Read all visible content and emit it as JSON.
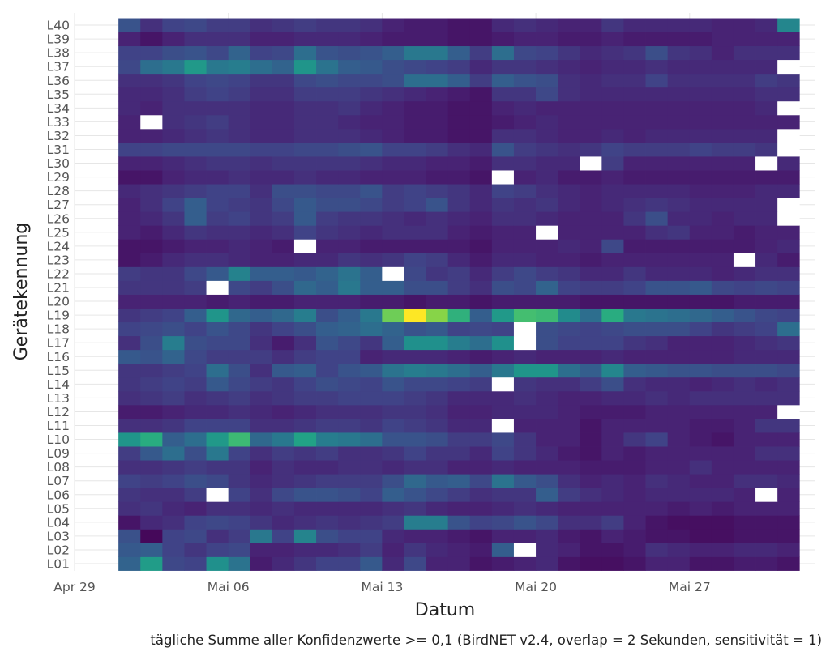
{
  "chart_data": {
    "type": "heatmap",
    "xlabel": "Datum",
    "ylabel": "Gerätekennung",
    "caption": "tägliche Summe aller Konfidenzwerte >= 0,1 (BirdNET v2.4, overlap = 2 Sekunden, sensitivität = 1)",
    "x_ticks": [
      "Apr 29",
      "Mai 06",
      "Mai 13",
      "Mai 20",
      "Mai 27"
    ],
    "x_range": [
      "2023-04-29",
      "2023-06-01"
    ],
    "dates": [
      "2023-05-01",
      "2023-05-02",
      "2023-05-03",
      "2023-05-04",
      "2023-05-05",
      "2023-05-06",
      "2023-05-07",
      "2023-05-08",
      "2023-05-09",
      "2023-05-10",
      "2023-05-11",
      "2023-05-12",
      "2023-05-13",
      "2023-05-14",
      "2023-05-15",
      "2023-05-16",
      "2023-05-17",
      "2023-05-18",
      "2023-05-19",
      "2023-05-20",
      "2023-05-21",
      "2023-05-22",
      "2023-05-23",
      "2023-05-24",
      "2023-05-25",
      "2023-05-26",
      "2023-05-27",
      "2023-05-28",
      "2023-05-29",
      "2023-05-30",
      "2023-05-31"
    ],
    "devices": [
      "L01",
      "L02",
      "L03",
      "L04",
      "L05",
      "L06",
      "L07",
      "L08",
      "L09",
      "L10",
      "L11",
      "L12",
      "L13",
      "L14",
      "L15",
      "L16",
      "L17",
      "L18",
      "L19",
      "L20",
      "L21",
      "L22",
      "L23",
      "L24",
      "L25",
      "L26",
      "L27",
      "L28",
      "L29",
      "L30",
      "L31",
      "L32",
      "L33",
      "L34",
      "L35",
      "L36",
      "L37",
      "L38",
      "L39",
      "L40"
    ],
    "colorscale": "viridis",
    "missing_color": "#ffffff",
    "value_range": [
      0,
      1
    ],
    "note": "values are relative (0 = lowest, 1 = highest); null = no data",
    "values": {
      "L01": [
        0.32,
        0.55,
        0.22,
        0.2,
        0.5,
        0.38,
        0.08,
        0.12,
        0.16,
        0.2,
        0.2,
        0.28,
        0.12,
        0.22,
        0.1,
        0.1,
        0.06,
        0.08,
        0.1,
        0.12,
        0.06,
        0.04,
        0.04,
        0.06,
        0.1,
        0.1,
        0.06,
        0.06,
        0.08,
        0.08,
        0.06
      ],
      "L02": [
        0.28,
        0.3,
        0.2,
        0.16,
        0.2,
        0.22,
        0.1,
        0.1,
        0.12,
        0.12,
        0.14,
        0.18,
        0.1,
        0.16,
        0.12,
        0.1,
        0.08,
        0.3,
        null,
        0.12,
        0.1,
        0.06,
        0.06,
        0.08,
        0.14,
        0.12,
        0.1,
        0.1,
        0.12,
        0.12,
        0.1
      ],
      "L03": [
        0.25,
        0.02,
        0.2,
        0.22,
        0.14,
        0.18,
        0.4,
        0.2,
        0.45,
        0.24,
        0.2,
        0.2,
        0.12,
        0.1,
        0.1,
        0.08,
        0.06,
        0.1,
        0.1,
        0.12,
        0.08,
        0.06,
        0.1,
        0.08,
        0.06,
        0.06,
        0.04,
        0.04,
        0.06,
        0.06,
        0.06
      ],
      "L04": [
        0.06,
        0.12,
        0.14,
        0.2,
        0.22,
        0.2,
        0.16,
        0.12,
        0.14,
        0.16,
        0.14,
        0.16,
        0.18,
        0.42,
        0.42,
        0.26,
        0.2,
        0.22,
        0.26,
        0.22,
        0.14,
        0.14,
        0.18,
        0.1,
        0.06,
        0.04,
        0.04,
        0.04,
        0.06,
        0.06,
        0.06
      ],
      "L05": [
        0.14,
        0.16,
        0.12,
        0.1,
        0.14,
        0.14,
        0.12,
        0.14,
        0.12,
        0.12,
        0.12,
        0.12,
        0.14,
        0.16,
        0.12,
        0.1,
        0.1,
        0.12,
        0.14,
        0.12,
        0.1,
        0.1,
        0.1,
        0.1,
        0.1,
        0.08,
        0.1,
        0.08,
        0.1,
        0.1,
        0.1
      ],
      "L06": [
        0.16,
        0.14,
        0.14,
        0.18,
        null,
        0.2,
        0.14,
        0.22,
        0.26,
        0.26,
        0.24,
        0.2,
        0.3,
        0.26,
        0.22,
        0.18,
        0.14,
        0.16,
        0.16,
        0.3,
        0.18,
        0.14,
        0.12,
        0.1,
        0.12,
        0.12,
        0.12,
        0.12,
        0.1,
        null,
        0.1
      ],
      "L07": [
        0.2,
        0.18,
        0.2,
        0.24,
        0.22,
        0.16,
        0.12,
        0.14,
        0.16,
        0.18,
        0.18,
        0.18,
        0.24,
        0.34,
        0.28,
        0.3,
        0.22,
        0.38,
        0.28,
        0.24,
        0.14,
        0.1,
        0.12,
        0.1,
        0.14,
        0.12,
        0.1,
        0.1,
        0.14,
        0.14,
        0.12
      ],
      "L08": [
        0.14,
        0.14,
        0.16,
        0.18,
        0.16,
        0.16,
        0.1,
        0.14,
        0.12,
        0.12,
        0.14,
        0.14,
        0.12,
        0.14,
        0.14,
        0.1,
        0.1,
        0.12,
        0.1,
        0.1,
        0.1,
        0.08,
        0.08,
        0.08,
        0.1,
        0.1,
        0.14,
        0.1,
        0.1,
        0.1,
        0.1
      ],
      "L09": [
        0.18,
        0.28,
        0.36,
        0.24,
        0.4,
        0.2,
        0.14,
        0.18,
        0.16,
        0.18,
        0.14,
        0.14,
        0.16,
        0.2,
        0.16,
        0.16,
        0.12,
        0.2,
        0.16,
        0.12,
        0.08,
        0.06,
        0.1,
        0.08,
        0.1,
        0.1,
        0.1,
        0.1,
        0.1,
        0.14,
        0.14
      ],
      "L10": [
        0.52,
        0.62,
        0.3,
        0.36,
        0.54,
        0.68,
        0.34,
        0.4,
        0.58,
        0.42,
        0.4,
        0.36,
        0.26,
        0.26,
        0.24,
        0.18,
        0.18,
        0.22,
        0.16,
        0.1,
        0.1,
        0.06,
        0.1,
        0.16,
        0.2,
        0.1,
        0.08,
        0.06,
        0.1,
        0.1,
        0.1
      ],
      "L11": [
        0.14,
        0.14,
        0.16,
        0.2,
        0.2,
        0.2,
        0.14,
        0.14,
        0.16,
        0.18,
        0.18,
        0.16,
        0.2,
        0.18,
        0.16,
        0.12,
        0.12,
        null,
        0.1,
        0.1,
        0.1,
        0.06,
        0.1,
        0.1,
        0.1,
        0.1,
        0.08,
        0.08,
        0.1,
        0.16,
        0.16
      ],
      "L12": [
        0.08,
        0.08,
        0.1,
        0.12,
        0.12,
        0.14,
        0.12,
        0.1,
        0.12,
        0.14,
        0.14,
        0.14,
        0.16,
        0.16,
        0.14,
        0.1,
        0.1,
        0.12,
        0.12,
        0.12,
        0.1,
        0.08,
        0.08,
        0.08,
        0.1,
        0.1,
        0.1,
        0.1,
        0.1,
        0.1,
        null
      ],
      "L13": [
        0.14,
        0.16,
        0.18,
        0.14,
        0.16,
        0.18,
        0.14,
        0.16,
        0.18,
        0.18,
        0.2,
        0.2,
        0.2,
        0.18,
        0.16,
        0.12,
        0.12,
        0.12,
        0.14,
        0.12,
        0.1,
        0.1,
        0.12,
        0.12,
        0.14,
        0.12,
        0.14,
        0.14,
        0.14,
        0.14,
        0.14
      ],
      "L14": [
        0.16,
        0.18,
        0.2,
        0.18,
        0.28,
        0.22,
        0.18,
        0.16,
        0.2,
        0.24,
        0.22,
        0.2,
        0.26,
        0.22,
        0.22,
        0.2,
        0.18,
        null,
        0.16,
        0.14,
        0.14,
        0.18,
        0.24,
        0.14,
        0.12,
        0.12,
        0.1,
        0.12,
        0.14,
        0.12,
        0.14
      ],
      "L15": [
        0.16,
        0.16,
        0.18,
        0.2,
        0.36,
        0.24,
        0.14,
        0.28,
        0.3,
        0.2,
        0.26,
        0.28,
        0.38,
        0.42,
        0.4,
        0.36,
        0.3,
        0.4,
        0.52,
        0.52,
        0.36,
        0.3,
        0.46,
        0.3,
        0.28,
        0.26,
        0.26,
        0.24,
        0.24,
        0.24,
        0.22
      ],
      "L16": [
        0.28,
        0.26,
        0.32,
        0.22,
        0.18,
        0.18,
        0.18,
        0.14,
        0.18,
        0.2,
        0.2,
        0.1,
        0.12,
        0.12,
        0.12,
        0.1,
        0.08,
        0.1,
        0.12,
        0.1,
        0.1,
        0.1,
        0.12,
        0.1,
        0.1,
        0.1,
        0.1,
        0.1,
        0.12,
        0.12,
        0.12
      ],
      "L17": [
        0.14,
        0.24,
        0.42,
        0.24,
        0.22,
        0.22,
        0.14,
        0.08,
        0.14,
        0.26,
        0.22,
        0.16,
        0.3,
        0.5,
        0.5,
        0.42,
        0.36,
        0.5,
        null,
        0.24,
        0.2,
        0.2,
        0.2,
        0.16,
        0.14,
        0.1,
        0.1,
        0.1,
        0.12,
        0.14,
        0.16
      ],
      "L18": [
        0.2,
        0.22,
        0.24,
        0.2,
        0.26,
        0.22,
        0.16,
        0.2,
        0.24,
        0.3,
        0.32,
        0.36,
        0.32,
        0.26,
        0.28,
        0.2,
        0.22,
        0.2,
        null,
        0.24,
        0.22,
        0.2,
        0.22,
        0.24,
        0.24,
        0.24,
        0.2,
        0.16,
        0.18,
        0.2,
        0.36
      ],
      "L19": [
        0.16,
        0.18,
        0.2,
        0.3,
        0.52,
        0.34,
        0.3,
        0.34,
        0.42,
        0.24,
        0.3,
        0.4,
        0.78,
        1.0,
        0.82,
        0.64,
        0.3,
        0.54,
        0.7,
        0.68,
        0.48,
        0.36,
        0.62,
        0.4,
        0.38,
        0.36,
        0.34,
        0.3,
        0.26,
        0.22,
        0.2
      ],
      "L20": [
        0.1,
        0.1,
        0.1,
        0.1,
        0.08,
        0.1,
        0.08,
        0.08,
        0.1,
        0.1,
        0.1,
        0.08,
        0.08,
        0.06,
        0.08,
        0.08,
        0.06,
        0.08,
        0.08,
        0.08,
        0.08,
        0.06,
        0.06,
        0.06,
        0.06,
        0.06,
        0.06,
        0.06,
        0.08,
        0.08,
        0.08
      ],
      "L21": [
        0.16,
        0.16,
        0.16,
        0.18,
        null,
        0.22,
        0.18,
        0.24,
        0.34,
        0.3,
        0.4,
        0.3,
        0.3,
        0.24,
        0.24,
        0.18,
        0.14,
        0.24,
        0.22,
        0.32,
        0.2,
        0.18,
        0.18,
        0.2,
        0.26,
        0.26,
        0.28,
        0.22,
        0.2,
        0.22,
        0.2
      ],
      "L22": [
        0.18,
        0.16,
        0.16,
        0.22,
        0.28,
        0.44,
        0.3,
        0.3,
        0.28,
        0.32,
        0.38,
        0.3,
        null,
        0.22,
        0.16,
        0.18,
        0.12,
        0.18,
        0.22,
        0.18,
        0.16,
        0.12,
        0.12,
        0.16,
        0.12,
        0.12,
        0.12,
        0.1,
        0.12,
        0.14,
        0.14
      ],
      "L23": [
        0.06,
        0.08,
        0.12,
        0.14,
        0.14,
        0.12,
        0.1,
        0.1,
        0.12,
        0.12,
        0.16,
        0.14,
        0.16,
        0.2,
        0.18,
        0.12,
        0.08,
        0.12,
        0.12,
        0.1,
        0.1,
        0.08,
        0.1,
        0.1,
        0.1,
        0.1,
        0.1,
        0.1,
        null,
        0.12,
        0.08
      ],
      "L24": [
        0.06,
        0.06,
        0.08,
        0.1,
        0.1,
        0.12,
        0.1,
        0.08,
        null,
        0.1,
        0.1,
        0.08,
        0.08,
        0.08,
        0.08,
        0.08,
        0.06,
        0.1,
        0.1,
        0.1,
        0.12,
        0.1,
        0.22,
        0.08,
        0.08,
        0.08,
        0.08,
        0.08,
        0.08,
        0.1,
        0.12
      ],
      "L25": [
        0.1,
        0.08,
        0.12,
        0.16,
        0.14,
        0.14,
        0.12,
        0.14,
        0.2,
        0.16,
        0.14,
        0.12,
        0.14,
        0.14,
        0.14,
        0.1,
        0.08,
        0.1,
        0.1,
        null,
        0.1,
        0.1,
        0.1,
        0.1,
        0.14,
        0.16,
        0.1,
        0.1,
        0.08,
        0.1,
        0.1
      ],
      "L26": [
        0.1,
        0.12,
        0.16,
        0.3,
        0.18,
        0.2,
        0.16,
        0.18,
        0.28,
        0.18,
        0.16,
        0.16,
        0.14,
        0.12,
        0.14,
        0.12,
        0.1,
        0.14,
        0.14,
        0.12,
        0.1,
        0.1,
        0.1,
        0.16,
        0.24,
        0.12,
        0.12,
        0.1,
        0.12,
        0.12,
        null
      ],
      "L27": [
        0.1,
        0.14,
        0.2,
        0.3,
        0.2,
        0.18,
        0.16,
        0.22,
        0.28,
        0.24,
        0.24,
        0.22,
        0.18,
        0.2,
        0.26,
        0.16,
        0.12,
        0.16,
        0.14,
        0.16,
        0.12,
        0.1,
        0.12,
        0.14,
        0.16,
        0.14,
        0.12,
        0.12,
        0.12,
        0.12,
        null
      ],
      "L28": [
        0.12,
        0.14,
        0.16,
        0.18,
        0.2,
        0.2,
        0.14,
        0.24,
        0.24,
        0.22,
        0.22,
        0.26,
        0.18,
        0.2,
        0.18,
        0.16,
        0.12,
        0.2,
        0.18,
        0.14,
        0.12,
        0.1,
        0.12,
        0.12,
        0.12,
        0.12,
        0.1,
        0.1,
        0.1,
        0.12,
        0.12
      ],
      "L29": [
        0.06,
        0.06,
        0.1,
        0.12,
        0.12,
        0.14,
        0.12,
        0.12,
        0.14,
        0.12,
        0.12,
        0.1,
        0.1,
        0.1,
        0.08,
        0.08,
        0.06,
        null,
        0.1,
        0.12,
        0.08,
        0.08,
        0.1,
        0.08,
        0.08,
        0.08,
        0.08,
        0.08,
        0.08,
        0.08,
        0.08
      ],
      "L30": [
        0.1,
        0.1,
        0.12,
        0.14,
        0.16,
        0.16,
        0.14,
        0.16,
        0.16,
        0.16,
        0.16,
        0.14,
        0.12,
        0.12,
        0.1,
        0.1,
        0.08,
        0.14,
        0.14,
        0.12,
        0.12,
        null,
        0.18,
        0.1,
        0.1,
        0.1,
        0.1,
        0.1,
        0.1,
        null,
        0.12
      ],
      "L31": [
        0.2,
        0.2,
        0.22,
        0.22,
        0.22,
        0.22,
        0.2,
        0.2,
        0.22,
        0.22,
        0.24,
        0.26,
        0.2,
        0.2,
        0.18,
        0.14,
        0.12,
        0.26,
        0.18,
        0.16,
        0.14,
        0.16,
        0.2,
        0.18,
        0.18,
        0.18,
        0.2,
        0.18,
        0.18,
        0.16,
        null
      ],
      "L32": [
        0.1,
        0.1,
        0.12,
        0.14,
        0.16,
        0.14,
        0.12,
        0.12,
        0.14,
        0.14,
        0.14,
        0.12,
        0.1,
        0.08,
        0.08,
        0.06,
        0.06,
        0.14,
        0.14,
        0.12,
        0.1,
        0.1,
        0.12,
        0.1,
        0.12,
        0.12,
        0.12,
        0.12,
        0.12,
        0.12,
        null
      ],
      "L33": [
        0.1,
        null,
        0.14,
        0.16,
        0.18,
        0.14,
        0.12,
        0.12,
        0.14,
        0.14,
        0.12,
        0.1,
        0.1,
        0.08,
        0.08,
        0.06,
        0.06,
        0.08,
        0.1,
        0.12,
        0.1,
        0.1,
        0.1,
        0.1,
        0.1,
        0.1,
        0.1,
        0.1,
        0.1,
        0.1,
        0.1
      ],
      "L34": [
        0.12,
        0.1,
        0.14,
        0.14,
        0.14,
        0.14,
        0.12,
        0.12,
        0.14,
        0.14,
        0.16,
        0.12,
        0.1,
        0.08,
        0.08,
        0.06,
        0.06,
        0.1,
        0.12,
        0.1,
        0.1,
        0.1,
        0.1,
        0.1,
        0.1,
        0.1,
        0.1,
        0.1,
        0.1,
        0.12,
        null
      ],
      "L35": [
        0.12,
        0.12,
        0.14,
        0.18,
        0.2,
        0.18,
        0.14,
        0.14,
        0.18,
        0.18,
        0.18,
        0.16,
        0.14,
        0.12,
        0.1,
        0.08,
        0.06,
        0.16,
        0.16,
        0.22,
        0.14,
        0.12,
        0.12,
        0.12,
        0.12,
        0.12,
        0.12,
        0.12,
        0.12,
        0.14,
        0.14
      ],
      "L36": [
        0.14,
        0.14,
        0.16,
        0.2,
        0.22,
        0.2,
        0.16,
        0.16,
        0.22,
        0.24,
        0.22,
        0.22,
        0.24,
        0.36,
        0.36,
        0.3,
        0.18,
        0.3,
        0.26,
        0.24,
        0.14,
        0.12,
        0.14,
        0.14,
        0.2,
        0.14,
        0.14,
        0.14,
        0.14,
        0.18,
        0.16
      ],
      "L37": [
        0.22,
        0.36,
        0.4,
        0.54,
        0.4,
        0.42,
        0.36,
        0.32,
        0.52,
        0.38,
        0.3,
        0.28,
        0.24,
        0.22,
        0.2,
        0.18,
        0.12,
        0.16,
        0.16,
        0.14,
        0.12,
        0.1,
        0.12,
        0.12,
        0.14,
        0.12,
        0.12,
        0.12,
        0.12,
        0.12,
        null
      ],
      "L38": [
        0.2,
        0.2,
        0.24,
        0.26,
        0.22,
        0.32,
        0.2,
        0.22,
        0.36,
        0.26,
        0.24,
        0.26,
        0.3,
        0.4,
        0.4,
        0.3,
        0.18,
        0.36,
        0.22,
        0.2,
        0.16,
        0.12,
        0.14,
        0.16,
        0.24,
        0.16,
        0.14,
        0.1,
        0.14,
        0.14,
        0.14
      ],
      "L39": [
        0.1,
        0.06,
        0.1,
        0.14,
        0.14,
        0.14,
        0.1,
        0.1,
        0.12,
        0.12,
        0.12,
        0.1,
        0.08,
        0.08,
        0.08,
        0.06,
        0.06,
        0.08,
        0.1,
        0.1,
        0.08,
        0.08,
        0.1,
        0.08,
        0.08,
        0.08,
        0.08,
        0.1,
        0.1,
        0.1,
        0.1
      ],
      "L40": [
        0.26,
        0.14,
        0.2,
        0.22,
        0.18,
        0.18,
        0.14,
        0.16,
        0.18,
        0.16,
        0.16,
        0.14,
        0.1,
        0.08,
        0.08,
        0.06,
        0.06,
        0.12,
        0.14,
        0.12,
        0.1,
        0.1,
        0.16,
        0.12,
        0.12,
        0.12,
        0.12,
        0.1,
        0.1,
        0.12,
        0.46
      ]
    }
  }
}
